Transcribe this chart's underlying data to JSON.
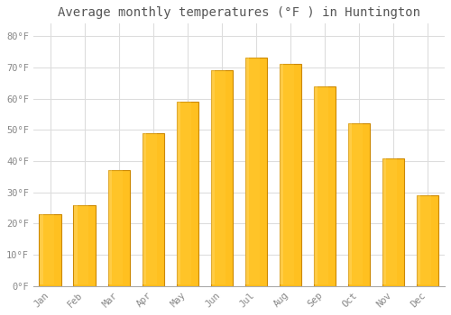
{
  "months": [
    "Jan",
    "Feb",
    "Mar",
    "Apr",
    "May",
    "Jun",
    "Jul",
    "Aug",
    "Sep",
    "Oct",
    "Nov",
    "Dec"
  ],
  "values": [
    23,
    26,
    37,
    49,
    59,
    69,
    73,
    71,
    64,
    52,
    41,
    29
  ],
  "bar_color": "#FFC020",
  "bar_edge_color": "#CC8800",
  "background_color": "#FFFFFF",
  "grid_color": "#DDDDDD",
  "title": "Average monthly temperatures (°F ) in Huntington",
  "title_fontsize": 10,
  "ylabel_ticks": [
    0,
    10,
    20,
    30,
    40,
    50,
    60,
    70,
    80
  ],
  "ylim": [
    0,
    84
  ],
  "tick_label_color": "#888888",
  "title_color": "#555555",
  "font_family": "monospace"
}
